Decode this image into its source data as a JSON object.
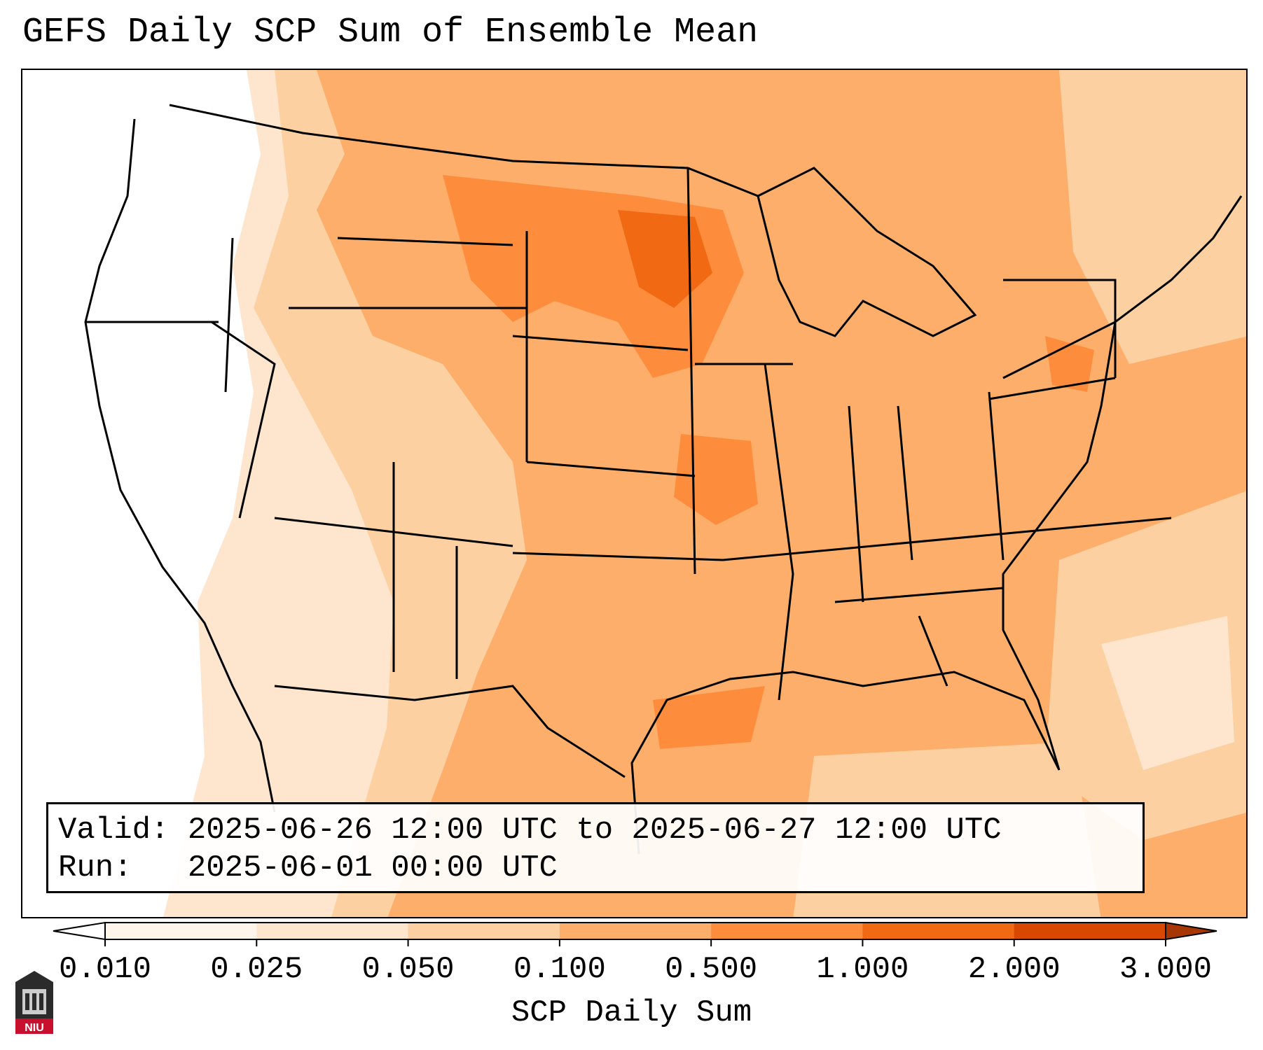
{
  "title": "GEFS Daily SCP Sum of Ensemble Mean",
  "info": {
    "valid_label": "Valid:",
    "valid_value": "2025-06-26 12:00 UTC to 2025-06-27 12:00 UTC",
    "run_label": "Run:",
    "run_value": "2025-06-01 00:00 UTC"
  },
  "colorbar": {
    "label": "SCP Daily Sum",
    "ticks": [
      "0.010",
      "0.025",
      "0.050",
      "0.100",
      "0.500",
      "1.000",
      "2.000",
      "3.000"
    ],
    "colors": [
      "#fff5eb",
      "#fee6ce",
      "#fdd0a2",
      "#fdae6b",
      "#fd8d3c",
      "#f16913",
      "#d94801"
    ],
    "extend": "both"
  },
  "logo": {
    "text": "NIU",
    "icon": "niu-logo-icon"
  },
  "map_regions": {
    "west_coast": "white",
    "northern_plains": "#fdae6b",
    "dakotas_minnesota_max": "#f16913",
    "southwest": "#fee6ce",
    "gulf_and_atlantic": "#fdae6b"
  }
}
